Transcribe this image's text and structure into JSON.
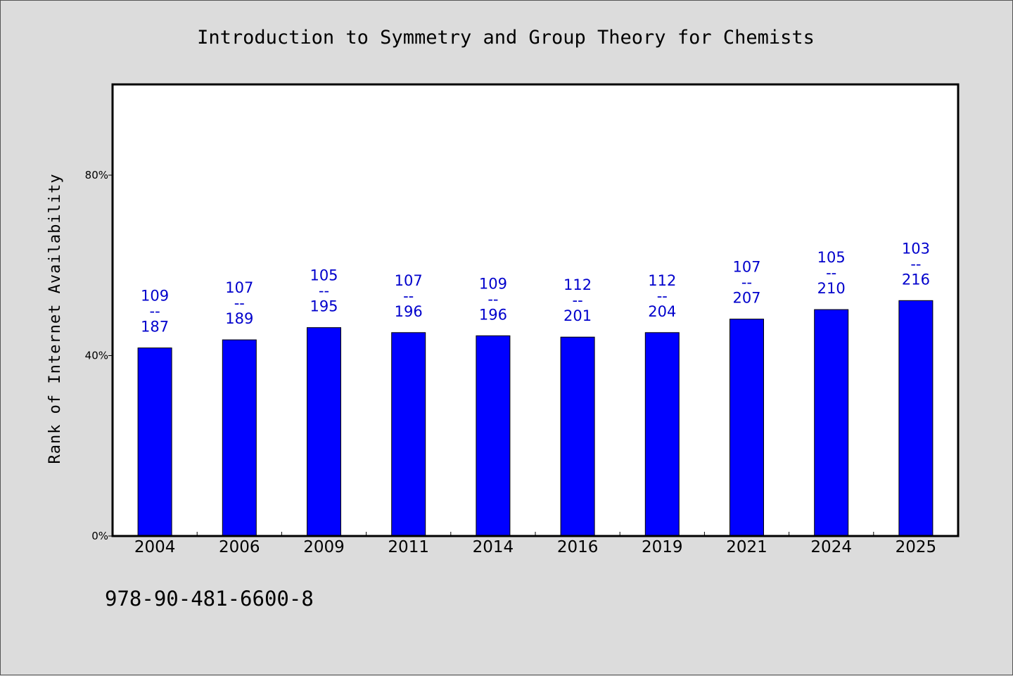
{
  "chart_data": {
    "type": "bar",
    "title": "Introduction to Symmetry and Group Theory for Chemists",
    "ylabel": "Rank of Internet Availability",
    "xlabel": "",
    "categories": [
      "2004",
      "2006",
      "2009",
      "2011",
      "2014",
      "2016",
      "2019",
      "2021",
      "2024",
      "2025"
    ],
    "values": [
      41.7,
      43.5,
      46.2,
      45.1,
      44.4,
      44.1,
      45.1,
      48.1,
      50.2,
      52.2
    ],
    "value_unit": "%",
    "bar_labels": [
      {
        "top": "109",
        "sep": "--",
        "bottom": "187"
      },
      {
        "top": "107",
        "sep": "--",
        "bottom": "189"
      },
      {
        "top": "105",
        "sep": "--",
        "bottom": "195"
      },
      {
        "top": "107",
        "sep": "--",
        "bottom": "196"
      },
      {
        "top": "109",
        "sep": "--",
        "bottom": "196"
      },
      {
        "top": "112",
        "sep": "--",
        "bottom": "201"
      },
      {
        "top": "112",
        "sep": "--",
        "bottom": "204"
      },
      {
        "top": "107",
        "sep": "--",
        "bottom": "207"
      },
      {
        "top": "105",
        "sep": "--",
        "bottom": "210"
      },
      {
        "top": "103",
        "sep": "--",
        "bottom": "216"
      }
    ],
    "ylim": [
      0,
      100
    ],
    "yticks": [
      0,
      40,
      80
    ],
    "ytick_labels": [
      "0%",
      "40%",
      "80%"
    ],
    "grid": false,
    "legend": "none",
    "colors": {
      "bar": "#0000ff",
      "bar_label": "#0000cc",
      "plot_background": "#ffffff",
      "page_background": "#dcdcdc"
    }
  },
  "footer": {
    "isbn": "978-90-481-6600-8"
  }
}
